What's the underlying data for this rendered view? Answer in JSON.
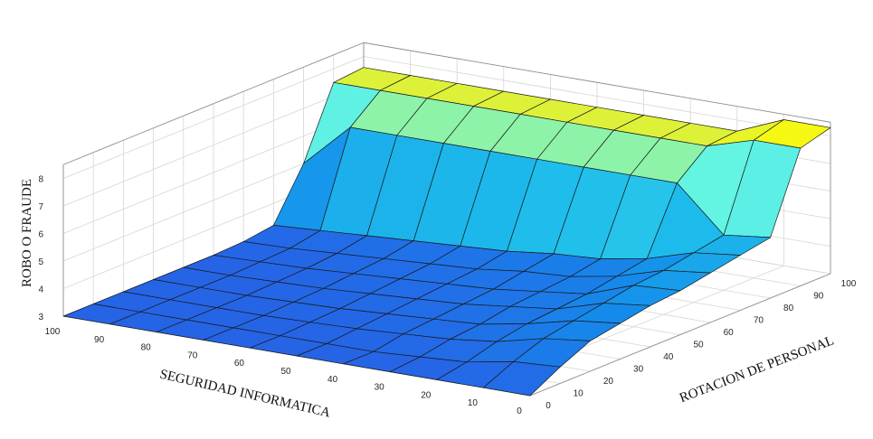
{
  "chart_data": {
    "type": "surface",
    "zlabel": "ROBO O FRAUDE",
    "xlabel": "SEGURIDAD INFORMATICA",
    "ylabel": "ROTACION DE PERSONAL",
    "x_ticks": [
      "100",
      "90",
      "80",
      "70",
      "60",
      "50",
      "40",
      "30",
      "20",
      "10",
      "0"
    ],
    "y_ticks": [
      "0",
      "10",
      "20",
      "30",
      "40",
      "50",
      "60",
      "70",
      "80",
      "90",
      "100"
    ],
    "z_ticks": [
      "3",
      "4",
      "5",
      "6",
      "7",
      "8"
    ],
    "xlim": [
      0,
      100
    ],
    "ylim": [
      0,
      100
    ],
    "zlim": [
      3,
      8.5
    ],
    "grid": true,
    "colormap": "parula",
    "x": [
      0,
      10,
      20,
      30,
      40,
      50,
      60,
      70,
      80,
      90,
      100
    ],
    "y": [
      0,
      10,
      20,
      30,
      40,
      50,
      60,
      70,
      80,
      90,
      100
    ],
    "z_rows_by_y": [
      [
        3.0,
        3.0,
        3.0,
        3.0,
        3.0,
        3.0,
        3.0,
        3.0,
        3.0,
        3.0,
        3.0
      ],
      [
        3.6,
        3.5,
        3.2,
        3.1,
        3.0,
        3.0,
        3.0,
        3.0,
        3.0,
        3.0,
        3.0
      ],
      [
        4.1,
        3.9,
        3.5,
        3.3,
        3.2,
        3.1,
        3.05,
        3.0,
        3.0,
        3.0,
        3.0
      ],
      [
        4.3,
        4.1,
        3.7,
        3.4,
        3.3,
        3.2,
        3.1,
        3.05,
        3.0,
        3.0,
        3.0
      ],
      [
        4.5,
        4.3,
        3.8,
        3.6,
        3.4,
        3.3,
        3.2,
        3.1,
        3.05,
        3.0,
        3.0
      ],
      [
        4.6,
        4.5,
        3.9,
        3.7,
        3.5,
        3.4,
        3.3,
        3.2,
        3.1,
        3.05,
        3.0
      ],
      [
        4.8,
        4.6,
        4.1,
        3.8,
        3.7,
        3.5,
        3.4,
        3.3,
        3.2,
        3.1,
        3.05
      ],
      [
        5.0,
        4.8,
        4.3,
        4.0,
        3.9,
        3.7,
        3.6,
        3.5,
        3.4,
        3.3,
        3.2
      ],
      [
        5.2,
        5.0,
        6.6,
        6.6,
        6.6,
        6.6,
        6.6,
        6.6,
        6.6,
        6.6,
        5.0
      ],
      [
        8.0,
        8.0,
        7.5,
        7.5,
        7.5,
        7.5,
        7.5,
        7.5,
        7.5,
        7.5,
        7.5
      ],
      [
        8.3,
        8.3,
        7.6,
        7.6,
        7.6,
        7.6,
        7.6,
        7.6,
        7.6,
        7.6,
        7.6
      ]
    ]
  }
}
